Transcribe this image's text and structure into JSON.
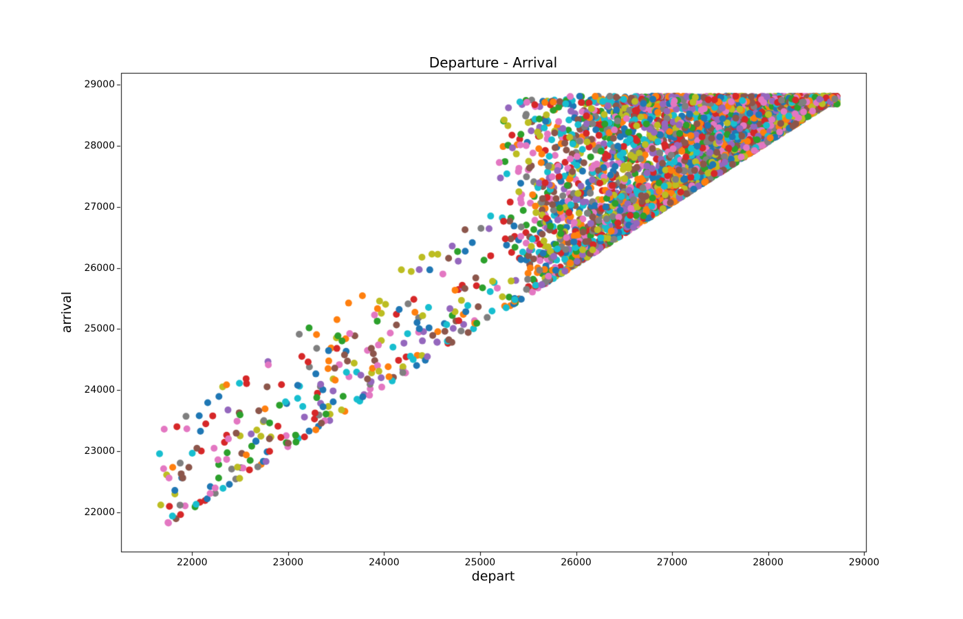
{
  "figure": {
    "background": "#ffffff"
  },
  "chart_data": {
    "type": "scatter",
    "title": "Departure - Arrival",
    "xlabel": "depart",
    "ylabel": "arrival",
    "xlim": [
      21260,
      29020
    ],
    "ylim": [
      21360,
      29190
    ],
    "x_ticks": [
      22000,
      23000,
      24000,
      25000,
      26000,
      27000,
      28000,
      29000
    ],
    "y_ticks": [
      22000,
      23000,
      24000,
      25000,
      26000,
      27000,
      28000,
      29000
    ],
    "grid": false,
    "legend": "none",
    "frame_color": "#000000",
    "text_color": "#000000",
    "marker_diameter_px": 10,
    "palette": [
      "#1f77b4",
      "#ff7f0e",
      "#2ca02c",
      "#d62728",
      "#9467bd",
      "#8c564b",
      "#e377c2",
      "#7f7f7f",
      "#bcbd22",
      "#17becf"
    ],
    "points_total_estimate": 4900,
    "distribution": {
      "note": "Procedural approximation of the depicted point cloud: a sparse diagonal tail of depart/arrival pairs from (21650,21710) to (25160,25400), then a very dense triangular cluster bounded left by depart=25160, below by arrival=depart+offset along the diagonal, and above by a flat cap at arrival=28810, densest toward the tip at (28720,28780).",
      "seed": 42,
      "tail": {
        "count": 300,
        "depart_min": 21650,
        "depart_max": 25160,
        "depart_skew": 0.9,
        "offset_min": 60,
        "offset_max": 1810,
        "offset_skew": 2.0
      },
      "dense": {
        "count": 4600,
        "depart_min": 25160,
        "depart_max": 28720,
        "depart_skew": 0.62,
        "offset_min": 60,
        "offset_scale": 3400,
        "offset_skew": 2.2,
        "fill_fraction": 0.4,
        "arrival_cap": 28810,
        "cap_jitter": 130
      }
    }
  }
}
